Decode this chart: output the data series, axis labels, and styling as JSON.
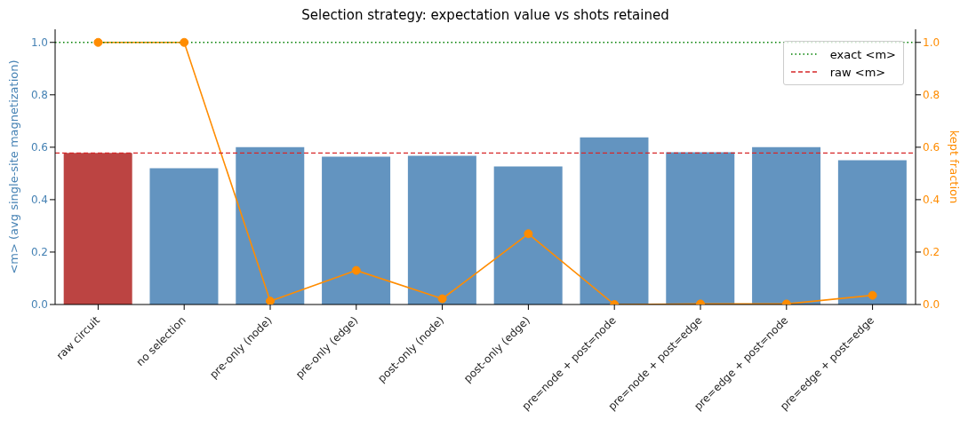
{
  "chart_data": {
    "type": "bar",
    "title": "Selection strategy: expectation value vs shots retained",
    "ylabel": "<m>  (avg single-site magnetization)",
    "y2label": "kept fraction",
    "categories": [
      "raw circuit",
      "no selection",
      "pre-only (node)",
      "pre-only (edge)",
      "post-only (node)",
      "post-only (edge)",
      "pre=node + post=node",
      "pre=node + post=edge",
      "pre=edge + post=node",
      "pre=edge + post=edge"
    ],
    "series": [
      {
        "colors": [
          "#bc4442",
          "#6394c0",
          "#6394c0",
          "#6394c0",
          "#6394c0",
          "#6394c0",
          "#6394c0",
          "#6394c0",
          "#6394c0",
          "#6394c0"
        ],
        "values": [
          0.578,
          0.52,
          0.6,
          0.564,
          0.567,
          0.527,
          0.638,
          0.581,
          0.6,
          0.55
        ]
      },
      {
        "type": "line",
        "axis": "y2",
        "color": "#ff8c00",
        "marker": "circle",
        "values": [
          1.0,
          1.0,
          0.013,
          0.13,
          0.022,
          0.27,
          0.0,
          0.002,
          0.002,
          0.035
        ]
      }
    ],
    "ylim": [
      0,
      1.05
    ],
    "yticks": [
      {
        "value": 0,
        "label": "0.0"
      },
      0.2,
      0.4,
      0.6,
      0.8,
      {
        "value": 1,
        "label": "1.0"
      }
    ],
    "y2lim": [
      0,
      1.05
    ],
    "y2ticks": [
      {
        "value": 0,
        "label": "0.0"
      },
      0.2,
      0.4,
      0.6,
      0.8,
      {
        "value": 1,
        "label": "1.0"
      }
    ],
    "ref_lines": [
      {
        "axis": "y",
        "value": 1.0,
        "label": "exact <m>",
        "color": "#008000",
        "line_style": "dotted"
      },
      {
        "axis": "y",
        "value": 0.578,
        "label": "raw <m>",
        "color": "#d62728",
        "line_style": "dashed"
      }
    ],
    "legend": "top right"
  }
}
